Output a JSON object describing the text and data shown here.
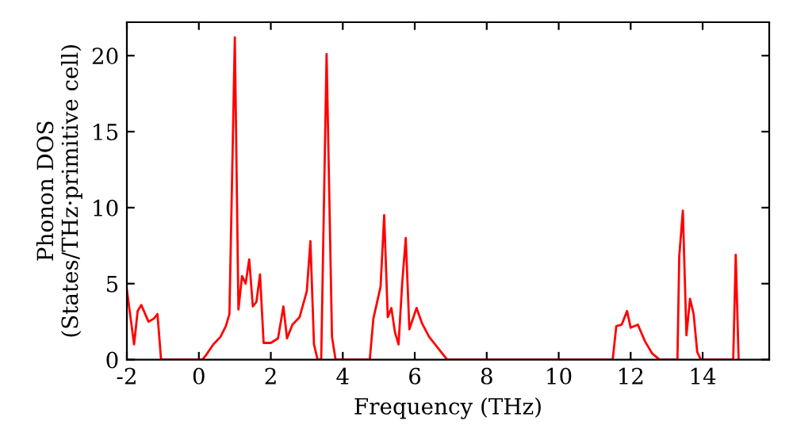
{
  "chart_data": {
    "type": "line",
    "xlabel": "Frequency (THz)",
    "ylabel": "Phonon DOS\n(States/THz·primitive cell)",
    "xlim": [
      -2,
      15.85
    ],
    "ylim": [
      0,
      22.2
    ],
    "xticks": [
      -2,
      0,
      2,
      4,
      6,
      8,
      10,
      12,
      14
    ],
    "yticks": [
      0,
      5,
      10,
      15,
      20
    ],
    "grid": false,
    "legend": false,
    "marker": "none",
    "line_style": "solid",
    "series": [
      {
        "color": "#ff0000",
        "x": [
          -2.0,
          -1.8,
          -1.7,
          -1.6,
          -1.4,
          -1.25,
          -1.15,
          -1.05,
          0.1,
          0.2,
          0.4,
          0.6,
          0.75,
          0.85,
          1.0,
          1.1,
          1.2,
          1.3,
          1.4,
          1.5,
          1.6,
          1.7,
          1.8,
          2.0,
          2.2,
          2.35,
          2.45,
          2.6,
          2.8,
          3.0,
          3.1,
          3.2,
          3.3,
          3.4,
          3.55,
          3.7,
          3.8,
          4.75,
          4.85,
          5.05,
          5.15,
          5.25,
          5.35,
          5.45,
          5.55,
          5.65,
          5.75,
          5.85,
          6.05,
          6.2,
          6.4,
          6.6,
          6.8,
          6.9,
          11.5,
          11.6,
          11.75,
          11.9,
          12.0,
          12.2,
          12.4,
          12.6,
          12.8,
          13.3,
          13.35,
          13.45,
          13.55,
          13.65,
          13.75,
          13.85,
          13.95,
          14.85,
          14.92,
          15.0
        ],
        "values": [
          4.6,
          1.0,
          3.2,
          3.6,
          2.5,
          2.7,
          3.0,
          0,
          0,
          0.3,
          1.0,
          1.5,
          2.2,
          3.0,
          21.2,
          3.3,
          5.5,
          5.0,
          6.6,
          3.5,
          3.8,
          5.6,
          1.1,
          1.1,
          1.4,
          3.5,
          1.4,
          2.3,
          2.8,
          4.5,
          7.8,
          1.0,
          0,
          0,
          20.1,
          1.5,
          0,
          0,
          2.7,
          4.8,
          9.5,
          2.8,
          3.4,
          1.8,
          1.0,
          5.0,
          8.0,
          2.0,
          3.4,
          2.4,
          1.5,
          0.9,
          0.3,
          0,
          0,
          2.2,
          2.3,
          3.2,
          2.1,
          2.3,
          1.2,
          0.4,
          0,
          0,
          6.8,
          9.8,
          1.6,
          4.0,
          3.0,
          0.5,
          0,
          0,
          6.9,
          0
        ]
      }
    ]
  }
}
